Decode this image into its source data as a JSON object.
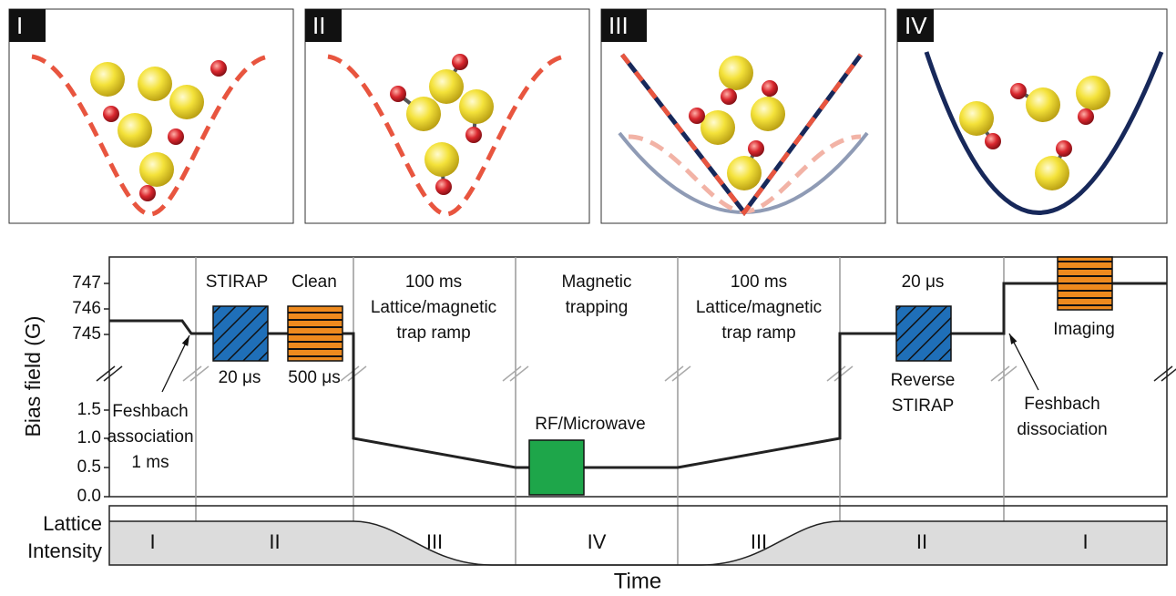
{
  "panels": [
    {
      "label": "I"
    },
    {
      "label": "II"
    },
    {
      "label": "III"
    },
    {
      "label": "IV"
    }
  ],
  "plot": {
    "y_axis_label": "Bias field (G)",
    "y_ticks": [
      "747",
      "746",
      "745",
      "1.5",
      "1.0",
      "0.5",
      "0.0"
    ],
    "annotations": [
      "STIRAP",
      "Clean",
      "20 μs",
      "500 μs",
      "100 ms",
      "Lattice/magnetic",
      "trap ramp",
      "Magnetic",
      "trapping",
      "RF/Microwave",
      "100 ms",
      "Lattice/magnetic",
      "trap ramp",
      "20 μs",
      "Reverse",
      "STIRAP",
      "Imaging",
      "Feshbach",
      "dissociation",
      "Feshbach",
      "association",
      "1 ms"
    ],
    "x_axis_label": "Time"
  },
  "lattice": {
    "label": [
      "Lattice",
      "Intensity"
    ],
    "stages": [
      "I",
      "II",
      "III",
      "IV",
      "III",
      "II",
      "I"
    ]
  }
}
